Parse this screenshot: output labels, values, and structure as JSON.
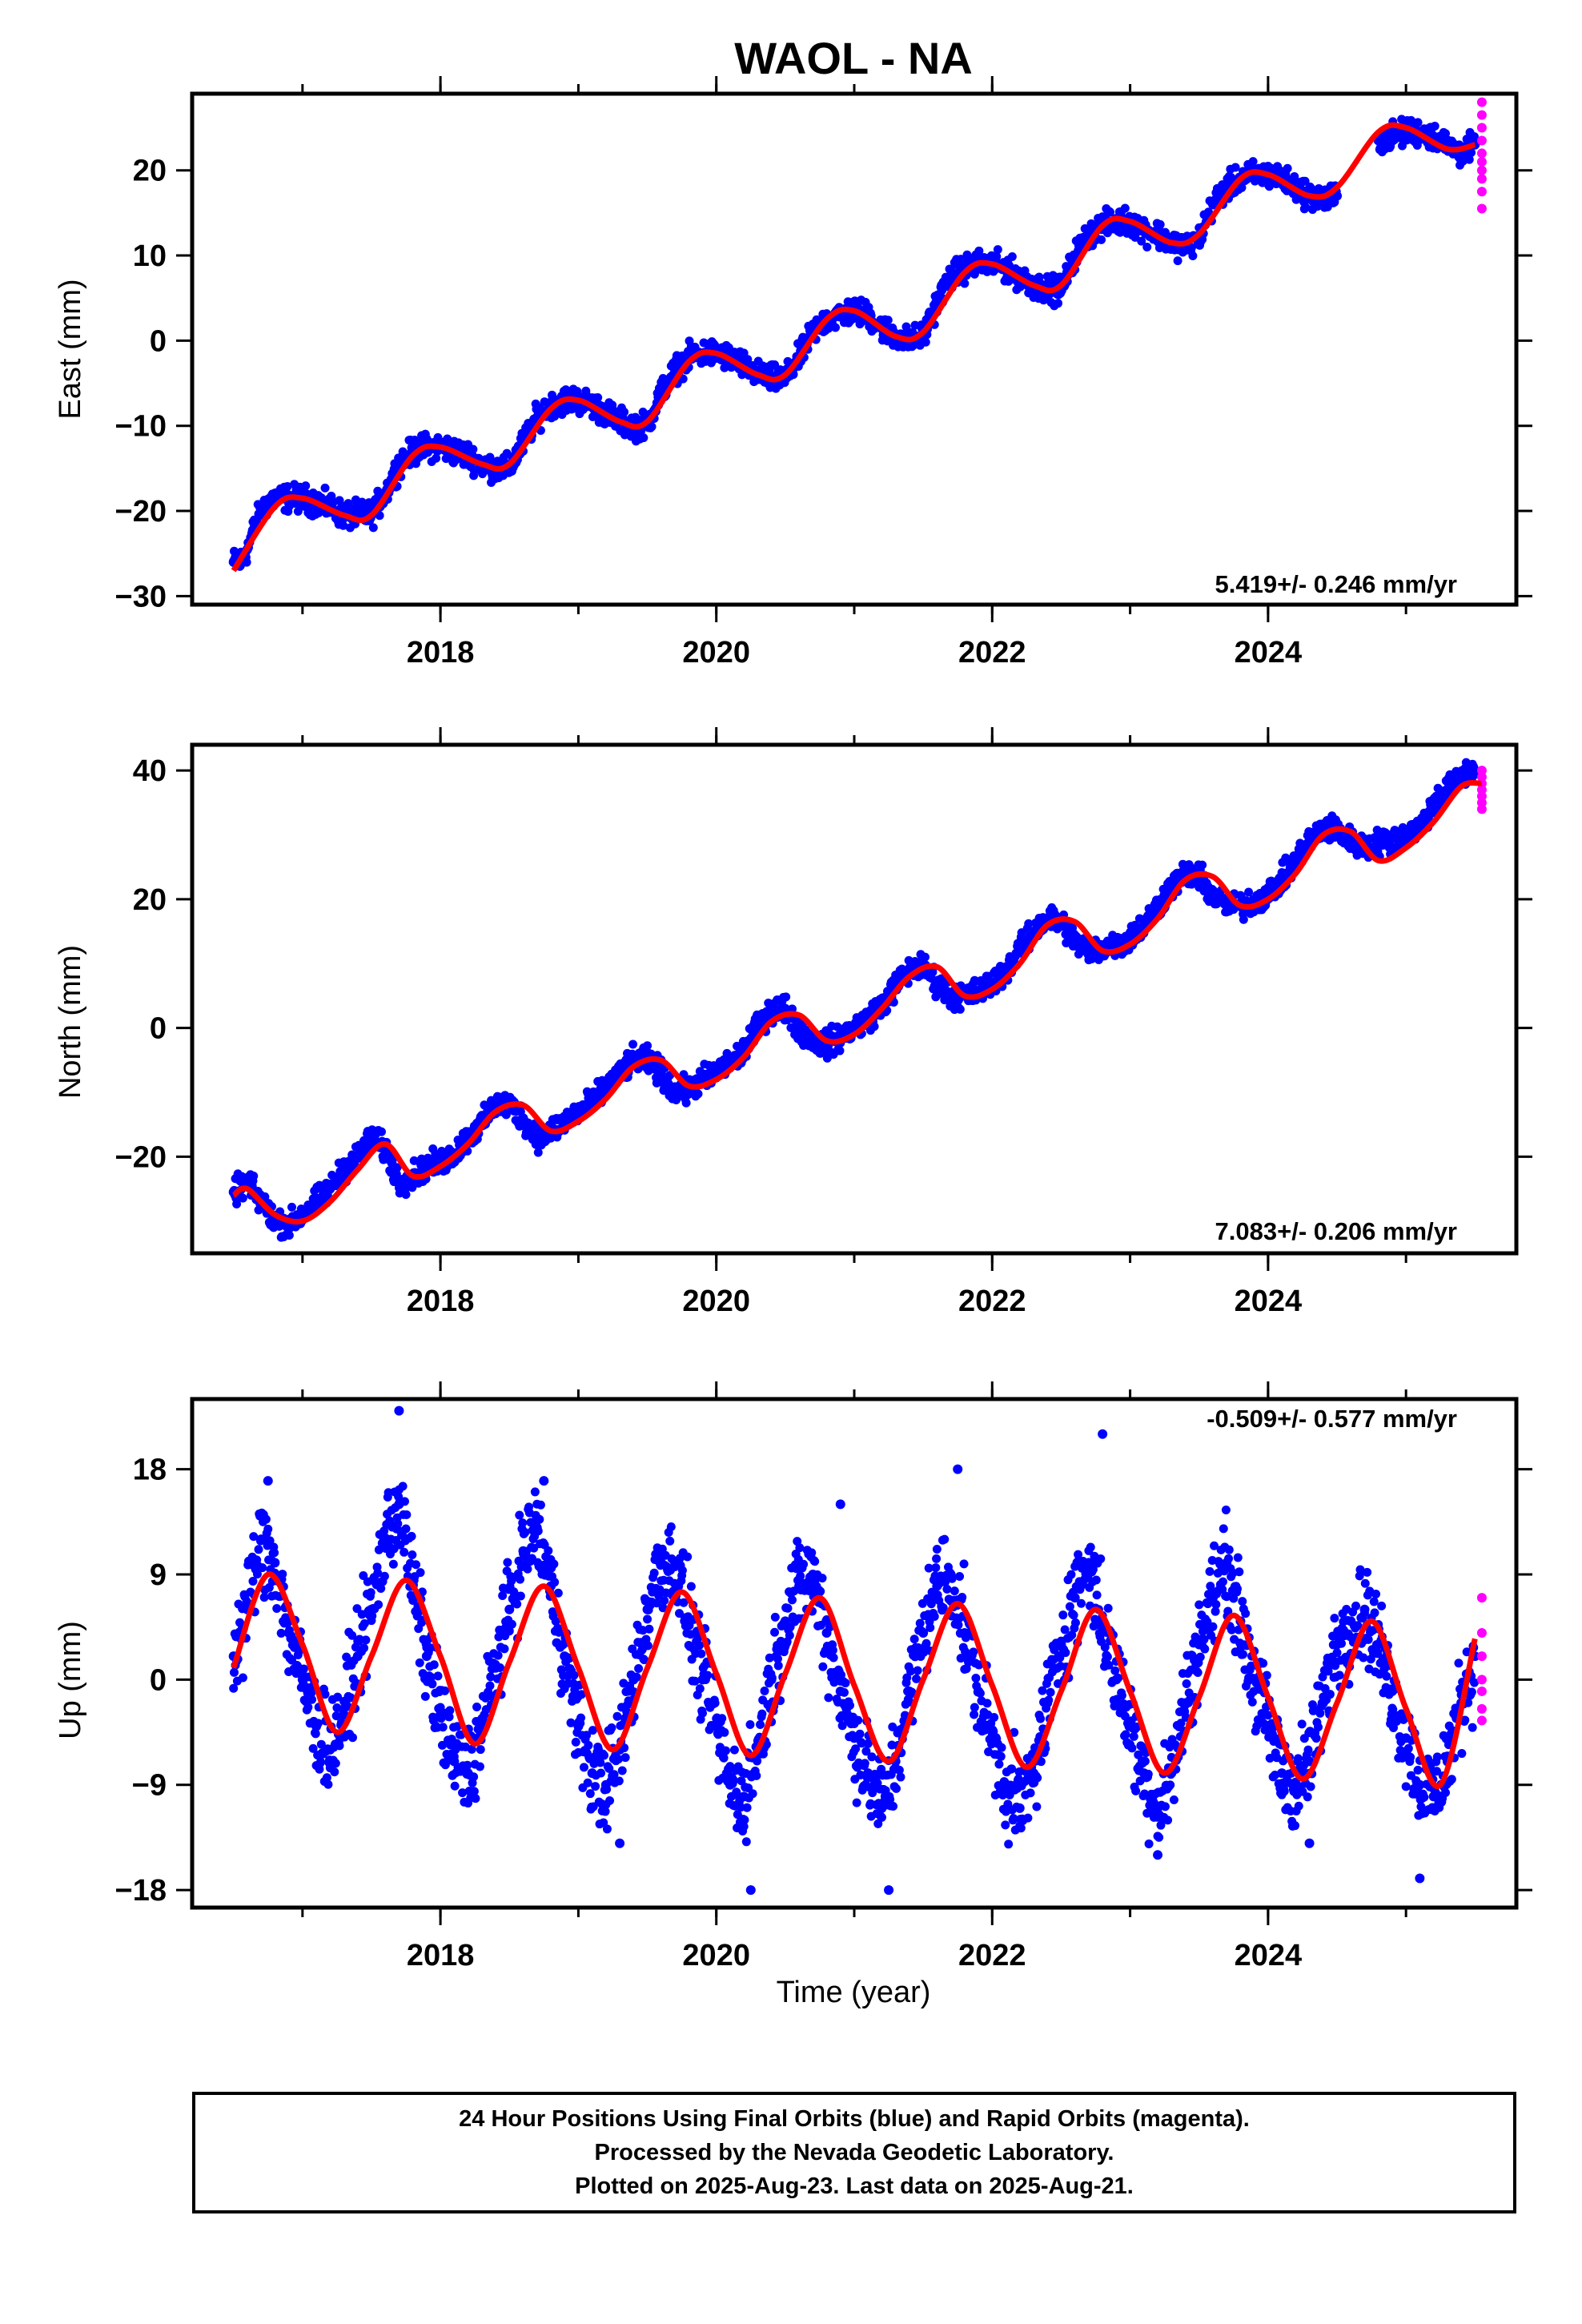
{
  "title": "WAOL - NA",
  "colors": {
    "final_orbits": "#0000ff",
    "rapid_orbits": "#ff00ff",
    "model": "#ff0000",
    "frame": "#000000"
  },
  "chart_data": [
    {
      "type": "scatter",
      "component": "east",
      "ylabel": "East (mm)",
      "ylim": [
        -31,
        29
      ],
      "xlim": [
        2016.2,
        2025.8
      ],
      "yticks": [
        -30,
        -20,
        -10,
        0,
        10,
        20
      ],
      "ytick_labels": [
        "−30",
        "−20",
        "−10",
        "0",
        "10",
        "20"
      ],
      "xticks": [
        2018,
        2020,
        2022,
        2024
      ],
      "xtick_labels": [
        "2018",
        "2020",
        "2022",
        "2024"
      ],
      "rate_label": "5.419+/- 0.246 mm/yr",
      "rate_label_position": "bottom-right",
      "model_curve": {
        "x": [
          2016.5,
          2016.8,
          2017.0,
          2017.3,
          2017.5,
          2017.8,
          2018.0,
          2018.3,
          2018.5,
          2018.8,
          2019.0,
          2019.3,
          2019.5,
          2019.8,
          2020.0,
          2020.3,
          2020.5,
          2020.8,
          2021.0,
          2021.3,
          2021.5,
          2021.8,
          2022.0,
          2022.3,
          2022.5,
          2022.8,
          2023.0,
          2023.3,
          2023.5,
          2023.8,
          2024.0,
          2024.3,
          2024.5,
          2024.8,
          2025.0,
          2025.3,
          2025.5
        ],
        "y": [
          -27,
          -19.5,
          -18.5,
          -20.5,
          -20.5,
          -13.5,
          -12.5,
          -14.5,
          -14.5,
          -8,
          -7,
          -9.5,
          -9.5,
          -2.5,
          -1.5,
          -4,
          -4,
          2.5,
          3.5,
          0.5,
          1,
          8,
          9,
          6.5,
          6.5,
          13.5,
          14,
          11.5,
          12.5,
          19,
          19.5,
          17,
          18,
          24.5,
          25,
          22.5,
          23
        ]
      },
      "final_orbit_points": {
        "description_count": 0,
        "x": [
          2016.5,
          2016.55,
          2016.6,
          2016.65,
          2016.7,
          2016.75,
          2016.8,
          2016.9,
          2017.0,
          2017.1,
          2017.2,
          2017.3,
          2017.4,
          2017.5,
          2017.6,
          2017.7,
          2017.8,
          2017.9,
          2018.0,
          2018.1,
          2018.2,
          2018.3,
          2018.4,
          2018.5,
          2018.6,
          2018.7,
          2018.8,
          2018.9,
          2019.0,
          2019.1,
          2019.2,
          2019.3,
          2019.4,
          2019.5,
          2019.6,
          2019.7,
          2019.8,
          2019.9,
          2020.0,
          2020.1,
          2020.2,
          2020.3,
          2020.4,
          2020.5,
          2020.6,
          2020.7,
          2020.8,
          2020.9,
          2021.0,
          2021.1,
          2021.2,
          2021.3,
          2021.4,
          2021.5,
          2021.6,
          2021.7,
          2021.8,
          2021.9,
          2022.0,
          2022.1,
          2022.2,
          2022.3,
          2022.4,
          2022.5,
          2022.6,
          2022.7,
          2022.8,
          2022.9,
          2023.0,
          2023.1,
          2023.2,
          2023.3,
          2023.4,
          2023.5,
          2023.6,
          2023.7,
          2023.8,
          2023.9,
          2024.0,
          2024.1,
          2024.2,
          2024.3,
          2024.4,
          2024.5,
          2024.8,
          2024.9,
          2025.0,
          2025.1,
          2025.2,
          2025.35,
          2025.4,
          2025.45,
          2025.5
        ],
        "y": [
          -26,
          -26,
          -24.5,
          -22,
          -20,
          -19,
          -18.5,
          -18.5,
          -18.5,
          -19,
          -19.5,
          -20.5,
          -20.5,
          -20.5,
          -18,
          -14.5,
          -13,
          -12.5,
          -12.5,
          -13,
          -13.5,
          -14.5,
          -15,
          -15,
          -12,
          -9,
          -7.5,
          -7,
          -7,
          -7.5,
          -8.5,
          -9.5,
          -10,
          -10,
          -6,
          -3.5,
          -2,
          -1.5,
          -1.5,
          -2,
          -3,
          -4,
          -4.5,
          -4.5,
          -2,
          1,
          2.5,
          3,
          3.5,
          3,
          1.5,
          0.5,
          0,
          0.5,
          4.5,
          7.5,
          8.5,
          9,
          9,
          8.5,
          7.5,
          6.5,
          6,
          6,
          10,
          12.5,
          13.5,
          14,
          14,
          13,
          12.5,
          11.5,
          11,
          12,
          16,
          18,
          19,
          19.5,
          19.5,
          19,
          18,
          17,
          16.5,
          17,
          23.5,
          24,
          24.5,
          24.5,
          24,
          22.5,
          22,
          22.5,
          23
        ]
      },
      "rapid_orbit_points": {
        "x": [
          2025.55,
          2025.55,
          2025.55,
          2025.55,
          2025.55,
          2025.55,
          2025.55,
          2025.55,
          2025.55,
          2025.55
        ],
        "y": [
          28,
          26.5,
          25,
          23.5,
          22,
          21,
          20,
          19,
          17.5,
          15.5
        ]
      }
    },
    {
      "type": "scatter",
      "component": "north",
      "ylabel": "North (mm)",
      "ylim": [
        -35,
        44
      ],
      "xlim": [
        2016.2,
        2025.8
      ],
      "yticks": [
        -20,
        0,
        20,
        40
      ],
      "ytick_labels": [
        "−20",
        "0",
        "20",
        "40"
      ],
      "xticks": [
        2018,
        2020,
        2022,
        2024
      ],
      "xtick_labels": [
        "2018",
        "2020",
        "2022",
        "2024"
      ],
      "rate_label": "7.083+/- 0.206 mm/yr",
      "rate_label_position": "bottom-right",
      "model_curve": {
        "x": [
          2016.5,
          2016.6,
          2016.8,
          2017.0,
          2017.2,
          2017.4,
          2017.6,
          2017.8,
          2018.0,
          2018.2,
          2018.4,
          2018.6,
          2018.8,
          2019.0,
          2019.2,
          2019.4,
          2019.6,
          2019.8,
          2020.0,
          2020.2,
          2020.4,
          2020.6,
          2020.8,
          2021.0,
          2021.2,
          2021.4,
          2021.6,
          2021.8,
          2022.0,
          2022.2,
          2022.4,
          2022.6,
          2022.8,
          2023.0,
          2023.2,
          2023.4,
          2023.6,
          2023.8,
          2024.0,
          2024.2,
          2024.4,
          2024.6,
          2024.8,
          2025.0,
          2025.2,
          2025.4,
          2025.55
        ],
        "y": [
          -26,
          -25,
          -29,
          -30,
          -27,
          -22,
          -18,
          -23,
          -21.5,
          -18,
          -13,
          -12,
          -16,
          -14.5,
          -11,
          -6,
          -5,
          -9,
          -8,
          -4.5,
          1,
          2,
          -2,
          -1,
          3,
          8,
          9.5,
          5,
          6,
          10,
          16,
          16.5,
          12,
          13,
          17,
          23,
          23.5,
          19,
          20,
          24,
          30,
          30.5,
          26,
          28,
          32,
          37.5,
          38
        ]
      },
      "final_orbit_points": {
        "x": [
          2016.5,
          2016.6,
          2016.7,
          2016.8,
          2016.9,
          2017.0,
          2017.1,
          2017.2,
          2017.3,
          2017.4,
          2017.5,
          2017.6,
          2017.7,
          2017.8,
          2017.9,
          2018.0,
          2018.1,
          2018.2,
          2018.3,
          2018.4,
          2018.5,
          2018.6,
          2018.7,
          2018.8,
          2018.9,
          2019.0,
          2019.1,
          2019.2,
          2019.3,
          2019.4,
          2019.5,
          2019.6,
          2019.7,
          2019.8,
          2019.9,
          2020.0,
          2020.1,
          2020.2,
          2020.3,
          2020.4,
          2020.5,
          2020.6,
          2020.7,
          2020.8,
          2020.9,
          2021.0,
          2021.1,
          2021.2,
          2021.3,
          2021.4,
          2021.5,
          2021.6,
          2021.7,
          2021.8,
          2021.9,
          2022.0,
          2022.1,
          2022.2,
          2022.3,
          2022.4,
          2022.5,
          2022.6,
          2022.7,
          2022.8,
          2022.9,
          2023.0,
          2023.1,
          2023.2,
          2023.3,
          2023.4,
          2023.5,
          2023.6,
          2023.7,
          2023.8,
          2023.9,
          2024.0,
          2024.1,
          2024.2,
          2024.3,
          2024.4,
          2024.5,
          2024.6,
          2024.7,
          2024.85,
          2025.0,
          2025.1,
          2025.2,
          2025.3,
          2025.4,
          2025.5
        ],
        "y": [
          -25.5,
          -24,
          -27,
          -30,
          -30.5,
          -29,
          -27,
          -25,
          -22,
          -20,
          -17,
          -19,
          -24,
          -23,
          -21.5,
          -21,
          -19.5,
          -17,
          -15,
          -12,
          -12,
          -14,
          -17,
          -16,
          -14.5,
          -13,
          -11.5,
          -9.5,
          -7,
          -5,
          -5,
          -7,
          -10,
          -9.5,
          -8,
          -7,
          -5.5,
          -3.5,
          0,
          3,
          3,
          0,
          -2,
          -2.5,
          -1.5,
          0,
          1.5,
          3.5,
          6.5,
          9,
          9.5,
          7,
          5,
          5,
          5.5,
          7,
          9,
          12,
          15,
          17,
          16.5,
          13.5,
          12,
          12.5,
          13,
          14,
          16,
          19,
          22,
          24,
          23.5,
          20.5,
          19,
          19,
          19.5,
          21,
          23,
          26,
          29,
          31,
          31,
          29,
          28,
          29,
          30,
          31,
          35,
          37,
          39,
          40
        ]
      },
      "rapid_orbit_points": {
        "x": [
          2025.55,
          2025.55,
          2025.55,
          2025.55,
          2025.55,
          2025.55,
          2025.55
        ],
        "y": [
          40,
          39,
          38,
          37,
          36,
          35,
          34
        ]
      }
    },
    {
      "type": "scatter",
      "component": "up",
      "ylabel": "Up (mm)",
      "xlabel": "Time (year)",
      "ylim": [
        -19.5,
        24
      ],
      "xlim": [
        2016.2,
        2025.8
      ],
      "yticks": [
        -18,
        -9,
        0,
        9,
        18
      ],
      "ytick_labels": [
        "−18",
        "−9",
        "0",
        "9",
        "18"
      ],
      "xticks": [
        2018,
        2020,
        2022,
        2024
      ],
      "xtick_labels": [
        "2018",
        "2020",
        "2022",
        "2024"
      ],
      "rate_label": "-0.509+/- 0.577 mm/yr",
      "rate_label_position": "top-right",
      "model_curve": {
        "x": [
          2016.5,
          2016.75,
          2017.0,
          2017.25,
          2017.5,
          2017.75,
          2018.0,
          2018.25,
          2018.5,
          2018.75,
          2019.0,
          2019.25,
          2019.5,
          2019.75,
          2020.0,
          2020.25,
          2020.5,
          2020.75,
          2021.0,
          2021.25,
          2021.5,
          2021.75,
          2022.0,
          2022.25,
          2022.5,
          2022.75,
          2023.0,
          2023.25,
          2023.5,
          2023.75,
          2024.0,
          2024.25,
          2024.5,
          2024.75,
          2025.0,
          2025.25,
          2025.5
        ],
        "y": [
          1,
          9,
          3,
          -4.5,
          2,
          8.5,
          2,
          -5.5,
          1.5,
          8,
          1,
          -6,
          1,
          7.5,
          0.5,
          -6.5,
          0.5,
          7,
          -0.5,
          -7,
          0,
          6.5,
          -0.5,
          -7.5,
          -1,
          6,
          -1,
          -8,
          -1.5,
          5.5,
          -1.5,
          -8.5,
          -2,
          5,
          -2.5,
          -9,
          3.5
        ]
      },
      "final_orbit_points": {
        "x": [
          2016.5,
          2016.6,
          2016.7,
          2016.8,
          2016.9,
          2017.0,
          2017.1,
          2017.2,
          2017.3,
          2017.4,
          2017.5,
          2017.6,
          2017.7,
          2017.8,
          2017.9,
          2018.0,
          2018.1,
          2018.2,
          2018.3,
          2018.4,
          2018.5,
          2018.6,
          2018.7,
          2018.8,
          2018.9,
          2019.0,
          2019.1,
          2019.2,
          2019.3,
          2019.4,
          2019.5,
          2019.6,
          2019.7,
          2019.8,
          2019.9,
          2020.0,
          2020.1,
          2020.2,
          2020.3,
          2020.4,
          2020.5,
          2020.6,
          2020.7,
          2020.8,
          2020.9,
          2021.0,
          2021.1,
          2021.2,
          2021.3,
          2021.4,
          2021.5,
          2021.6,
          2021.7,
          2021.8,
          2021.9,
          2022.0,
          2022.1,
          2022.2,
          2022.3,
          2022.4,
          2022.5,
          2022.6,
          2022.7,
          2022.8,
          2022.9,
          2023.0,
          2023.1,
          2023.2,
          2023.3,
          2023.4,
          2023.5,
          2023.6,
          2023.7,
          2023.8,
          2023.9,
          2024.0,
          2024.1,
          2024.2,
          2024.3,
          2024.4,
          2024.5,
          2024.6,
          2024.7,
          2024.8,
          2024.9,
          2025.0,
          2025.1,
          2025.2,
          2025.3,
          2025.4,
          2025.5,
          2017.7,
          2016.75,
          2022.8,
          2020.9,
          2018.75,
          2024.3,
          2021.25,
          2019.3,
          2020.25,
          2023.2,
          2025.1,
          2021.75
        ],
        "y": [
          2,
          6,
          12,
          10,
          4,
          0,
          -4,
          -6,
          -3,
          2,
          6,
          12,
          15,
          8,
          2,
          -3,
          -7,
          -8,
          -4,
          1,
          6,
          11,
          13,
          8,
          2,
          -4,
          -8,
          -9,
          -6,
          0,
          6,
          10,
          10,
          5,
          0,
          -4,
          -9,
          -10,
          -6,
          0,
          5,
          8,
          9,
          4,
          -1,
          -5,
          -8,
          -11,
          -7,
          -1,
          4,
          8,
          9,
          4,
          -1,
          -5,
          -9,
          -11,
          -8,
          -2,
          3,
          7,
          10,
          5,
          0,
          -4,
          -8,
          -11,
          -8,
          -2,
          3,
          7,
          10,
          5,
          0,
          -4,
          -8,
          -9,
          -7,
          -2,
          3,
          5,
          6,
          3,
          -1,
          -5,
          -9,
          -10,
          -7,
          -2,
          2,
          23,
          17,
          21,
          15,
          17,
          -14,
          -18,
          -14,
          -18,
          -15,
          -17,
          18
        ]
      },
      "rapid_orbit_points": {
        "x": [
          2025.55,
          2025.55,
          2025.55,
          2025.55,
          2025.55,
          2025.55,
          2025.55
        ],
        "y": [
          7,
          4,
          2,
          0,
          -1,
          -2.5,
          -3.5
        ]
      }
    }
  ],
  "footer": {
    "line1": "24 Hour Positions Using Final Orbits (blue) and Rapid Orbits (magenta).",
    "line2": "Processed by the Nevada Geodetic Laboratory.",
    "line3": "Plotted on 2025-Aug-23. Last data on 2025-Aug-21."
  }
}
